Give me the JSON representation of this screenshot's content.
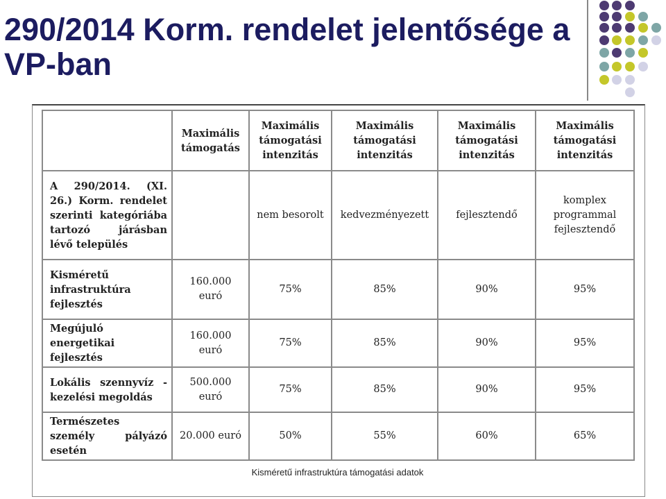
{
  "title": "290/2014 Korm. rendelet jelentősége a VP-ban",
  "colors": {
    "title": "#1c1c60",
    "dot_purple": "#4d3a72",
    "dot_olive": "#c4c72a",
    "dot_teal": "#7ea6a6",
    "dot_lavender": "#d2d2e6"
  },
  "table": {
    "header_top": [
      "",
      "Maximális támogatás",
      "Maximális támogatási intenzitás",
      "Maximális támogatási intenzitás",
      "Maximális támogatási intenzitás",
      "Maximális támogatási intenzitás"
    ],
    "header_category": [
      "A 290/2014. (XI. 26.) Korm. rendelet szerinti kategóriába tartozó járásban lévő település",
      "",
      "nem besorolt",
      "kedvezményezett",
      "fejlesztendő",
      "komplex programmal fejlesztendő"
    ],
    "rows": [
      [
        "Kisméretű infrastruktúra fejlesztés",
        "160.000 euró",
        "75%",
        "85%",
        "90%",
        "95%"
      ],
      [
        "Megújuló energetikai fejlesztés",
        "160.000 euró",
        "75%",
        "85%",
        "90%",
        "95%"
      ],
      [
        "Lokális szennyvíz - kezelési megoldás",
        "500.000 euró",
        "75%",
        "85%",
        "90%",
        "95%"
      ],
      [
        "Természetes személy pályázó esetén",
        "20.000 euró",
        "50%",
        "55%",
        "60%",
        "65%"
      ]
    ]
  },
  "caption": "Kisméretű infrastruktúra támogatási adatok"
}
